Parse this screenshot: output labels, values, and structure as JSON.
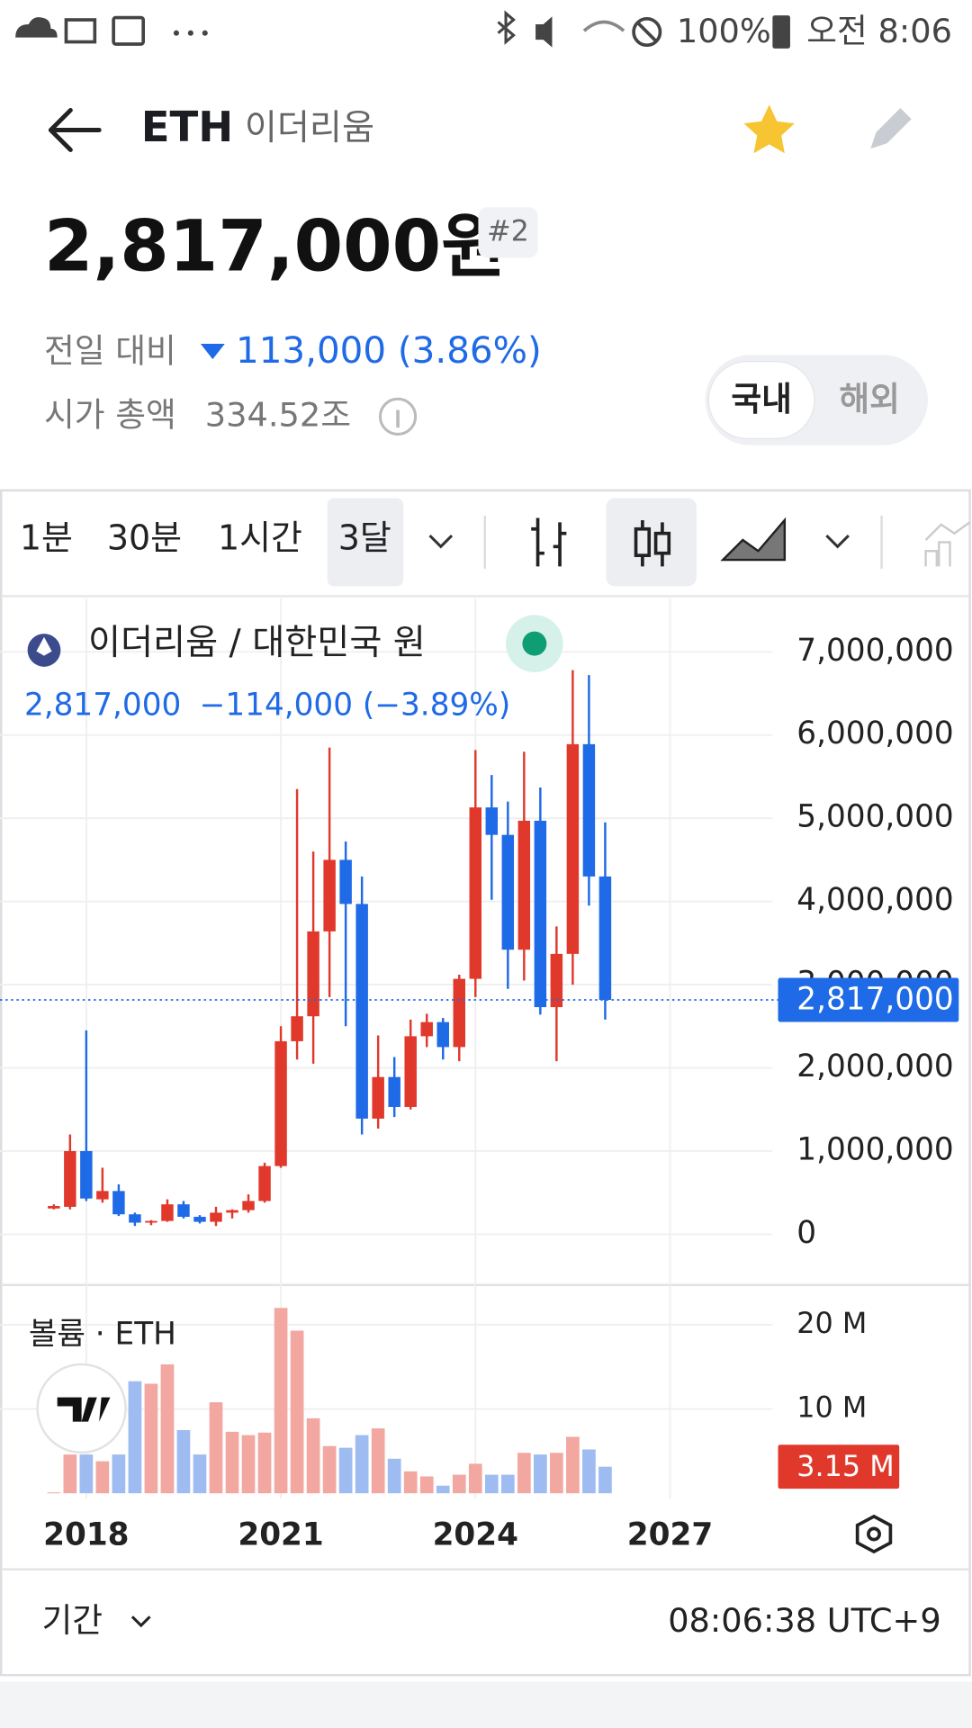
{
  "status_bar": {
    "battery": "100%",
    "time": "오전 8:06"
  },
  "header": {
    "symbol": "ETH",
    "name": "이더리움"
  },
  "price": {
    "value": "2,817,000원",
    "rank": "#2",
    "change_label": "전일 대비",
    "change": "113,000 (3.86%)",
    "market_cap_label": "시가 총액",
    "market_cap": "334.52조"
  },
  "market_toggle": [
    "국내",
    "해외"
  ],
  "toolbar": {
    "intervals": [
      "1분",
      "30분",
      "1시간",
      "3달"
    ]
  },
  "chart_legend": {
    "title": "이더리움 / 대한민국 원",
    "last": "2,817,000",
    "change": "−114,000 (−3.89%)",
    "volume_title": "볼륨 · ETH"
  },
  "chart_data": [
    {
      "type": "candlestick",
      "up_color": "#e0392c",
      "down_color": "#1f6ae6",
      "x": [
        2017.5,
        2017.75,
        2018,
        2018.25,
        2018.5,
        2018.75,
        2019,
        2019.25,
        2019.5,
        2019.75,
        2020,
        2020.25,
        2020.5,
        2020.75,
        2021,
        2021.25,
        2021.5,
        2021.75,
        2022,
        2022.25,
        2022.5,
        2022.75,
        2023,
        2023.25,
        2023.5,
        2023.75,
        2024,
        2024.25,
        2024.5,
        2024.75,
        2025,
        2025.25,
        2025.5,
        2025.75,
        2026
      ],
      "open": [
        310000,
        330000,
        1000000,
        420000,
        520000,
        240000,
        140000,
        160000,
        360000,
        210000,
        150000,
        260000,
        290000,
        400000,
        820000,
        2320000,
        2620000,
        3640000,
        4500000,
        3970000,
        1390000,
        1890000,
        1530000,
        2380000,
        2550000,
        2250000,
        3070000,
        5130000,
        4800000,
        3420000,
        4970000,
        2730000,
        3370000,
        5890000,
        4300000
      ],
      "high": [
        360000,
        1200000,
        2450000,
        800000,
        600000,
        260000,
        170000,
        420000,
        400000,
        230000,
        330000,
        300000,
        480000,
        860000,
        2500000,
        5350000,
        4600000,
        5850000,
        4720000,
        4300000,
        2390000,
        2130000,
        2580000,
        2650000,
        2600000,
        3120000,
        5820000,
        5520000,
        5200000,
        5800000,
        5370000,
        3700000,
        6780000,
        6720000,
        4950000
      ],
      "low": [
        300000,
        300000,
        400000,
        380000,
        220000,
        100000,
        110000,
        150000,
        190000,
        130000,
        100000,
        190000,
        260000,
        380000,
        800000,
        2100000,
        2050000,
        2850000,
        2500000,
        1200000,
        1270000,
        1410000,
        1500000,
        2250000,
        2100000,
        2080000,
        2850000,
        4020000,
        2950000,
        3050000,
        2640000,
        2080000,
        3000000,
        3950000,
        2580000
      ],
      "close": [
        340000,
        1000000,
        430000,
        520000,
        240000,
        140000,
        160000,
        360000,
        210000,
        150000,
        260000,
        290000,
        400000,
        820000,
        2320000,
        2620000,
        3640000,
        4500000,
        3970000,
        1390000,
        1890000,
        1530000,
        2380000,
        2550000,
        2250000,
        3070000,
        5130000,
        4800000,
        3420000,
        4970000,
        2730000,
        3370000,
        5890000,
        4300000,
        2817000
      ],
      "last_value": 2817000,
      "last_value_label": "2,817,000",
      "xlim": [
        2016.67,
        2028.58
      ],
      "ylim": [
        -596000,
        7642000
      ],
      "yticks": [
        0,
        {
          "value": 1000000,
          "label": "1,000,000"
        },
        {
          "value": 2000000,
          "label": "2,000,000"
        },
        {
          "value": 3000000,
          "label": "3,000,000"
        },
        {
          "value": 4000000,
          "label": "4,000,000"
        },
        {
          "value": 5000000,
          "label": "5,000,000"
        },
        {
          "value": 6000000,
          "label": "6,000,000"
        },
        {
          "value": 7000000,
          "label": "7,000,000"
        }
      ],
      "grid": true
    },
    {
      "type": "bar",
      "up_color": "#f2a7a1",
      "down_color": "#9ebcf1",
      "x": [
        2017.5,
        2017.75,
        2018,
        2018.25,
        2018.5,
        2018.75,
        2019,
        2019.25,
        2019.5,
        2019.75,
        2020,
        2020.25,
        2020.5,
        2020.75,
        2021,
        2021.25,
        2021.5,
        2021.75,
        2022,
        2022.25,
        2022.5,
        2022.75,
        2023,
        2023.25,
        2023.5,
        2023.75,
        2024,
        2024.25,
        2024.5,
        2024.75,
        2025,
        2025.25,
        2025.5,
        2025.75,
        2026
      ],
      "values": [
        100000,
        4600000,
        4600000,
        3800000,
        4600000,
        13300000,
        13000000,
        15300000,
        7500000,
        4600000,
        10800000,
        7300000,
        6900000,
        7200000,
        22000000,
        19300000,
        8900000,
        5600000,
        5400000,
        6900000,
        7700000,
        4100000,
        2600000,
        2000000,
        900000,
        2200000,
        3500000,
        2200000,
        2200000,
        4800000,
        4600000,
        4800000,
        6700000,
        5200000,
        3150000
      ],
      "last_value": 3150000,
      "last_value_label": "3.15 M",
      "xlim": [
        2016.67,
        2028.58
      ],
      "ylim": [
        0,
        24200000
      ],
      "xticks": [
        2018,
        2021,
        2024,
        2027
      ],
      "yticks": [
        {
          "value": 10000000,
          "label": "10 M"
        },
        {
          "value": 20000000,
          "label": "20 M"
        }
      ],
      "grid": true
    }
  ],
  "footer": {
    "period": "기간",
    "clock": "08:06:38 UTC+9"
  }
}
